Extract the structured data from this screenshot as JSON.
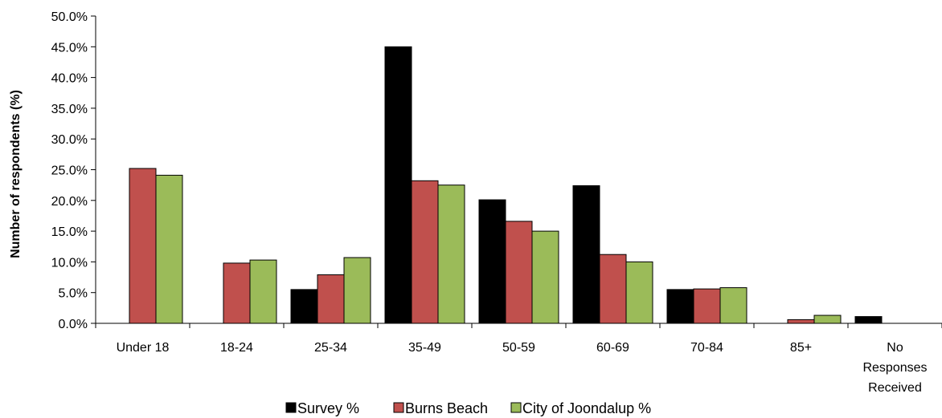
{
  "chart_data": {
    "type": "bar",
    "title": "",
    "xlabel": "",
    "ylabel": "Number of respondents (%)",
    "ylim": [
      0,
      50
    ],
    "yticks": [
      "0.0%",
      "5.0%",
      "10.0%",
      "15.0%",
      "20.0%",
      "25.0%",
      "30.0%",
      "35.0%",
      "40.0%",
      "45.0%",
      "50.0%"
    ],
    "categories": [
      "Under 18",
      "18-24",
      "25-34",
      "35-49",
      "50-59",
      "60-69",
      "70-84",
      "85+",
      "No Responses Received"
    ],
    "category_lines": [
      [
        "Under 18"
      ],
      [
        "18-24"
      ],
      [
        "25-34"
      ],
      [
        "35-49"
      ],
      [
        "50-59"
      ],
      [
        "60-69"
      ],
      [
        "70-84"
      ],
      [
        "85+"
      ],
      [
        "No",
        "Responses",
        "Received"
      ]
    ],
    "series": [
      {
        "name": "Survey %",
        "color": "#000000",
        "values": [
          0,
          0,
          5.5,
          45.0,
          20.1,
          22.4,
          5.5,
          0,
          1.1
        ]
      },
      {
        "name": "Burns Beach",
        "color": "#c0504d",
        "values": [
          25.2,
          9.8,
          7.9,
          23.2,
          16.6,
          11.2,
          5.6,
          0.6,
          0
        ]
      },
      {
        "name": "City of Joondalup %",
        "color": "#9bbb59",
        "values": [
          24.1,
          10.3,
          10.7,
          22.5,
          15.0,
          10.0,
          5.8,
          1.3,
          0
        ]
      }
    ],
    "grid": false,
    "legend_position": "bottom"
  }
}
